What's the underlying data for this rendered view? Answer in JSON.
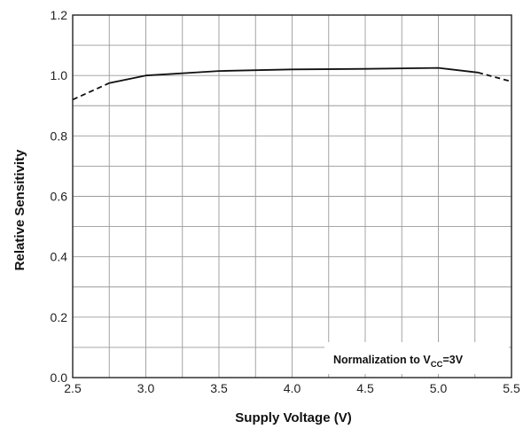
{
  "chart_data": {
    "type": "line",
    "xlabel": "Supply Voltage (V)",
    "ylabel": "Relative Sensitivity",
    "xlim": [
      2.5,
      5.5
    ],
    "ylim": [
      0.0,
      1.2
    ],
    "x_ticks": [
      "2.5",
      "3.0",
      "3.5",
      "4.0",
      "4.5",
      "5.0",
      "5.5"
    ],
    "y_ticks": [
      "0.0",
      "0.2",
      "0.4",
      "0.6",
      "0.8",
      "1.0",
      "1.2"
    ],
    "grid": true,
    "series": [
      {
        "style": "solid",
        "x": [
          2.75,
          3.0,
          3.5,
          4.0,
          4.5,
          5.0,
          5.27
        ],
        "y": [
          0.975,
          1.0,
          1.015,
          1.02,
          1.022,
          1.025,
          1.01
        ]
      },
      {
        "style": "dashed",
        "x": [
          2.5,
          2.75
        ],
        "y": [
          0.92,
          0.975
        ]
      },
      {
        "style": "dashed",
        "x": [
          5.27,
          5.5
        ],
        "y": [
          1.01,
          0.98
        ]
      }
    ],
    "annotation": {
      "prefix": "Normalization to V",
      "subscript": "CC",
      "suffix": "=3V"
    }
  }
}
